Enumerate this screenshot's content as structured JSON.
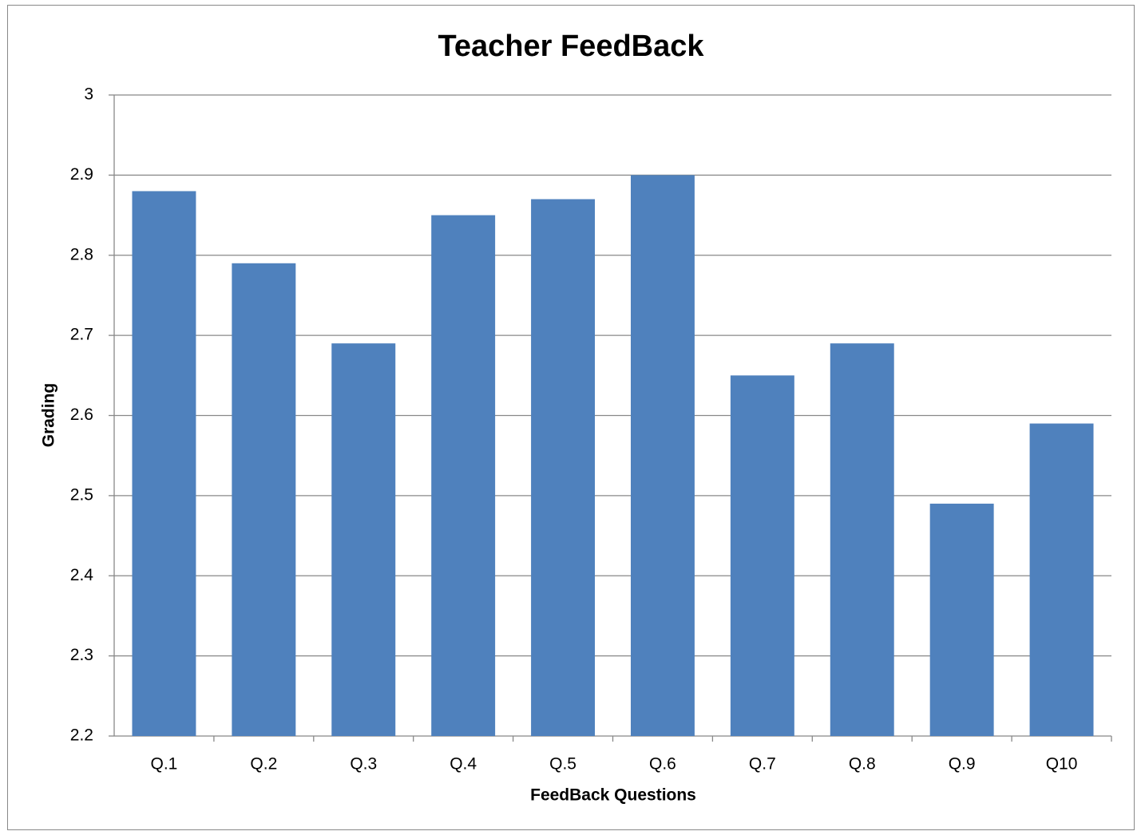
{
  "chart_data": {
    "type": "bar",
    "title": "Teacher FeedBack",
    "x_label": "FeedBack Questions",
    "y_label": "Grading",
    "categories": [
      "Q.1",
      "Q.2",
      "Q.3",
      "Q.4",
      "Q.5",
      "Q.6",
      "Q.7",
      "Q.8",
      "Q.9",
      "Q10"
    ],
    "values": [
      2.88,
      2.79,
      2.69,
      2.85,
      2.87,
      2.9,
      2.65,
      2.69,
      2.49,
      2.59
    ],
    "color": "#4f81bd",
    "ylim": [
      2.2,
      3
    ],
    "yticks": [
      2.2,
      2.3,
      2.4,
      2.5,
      2.6,
      2.7,
      2.8,
      2.9,
      3
    ],
    "grid": true
  }
}
